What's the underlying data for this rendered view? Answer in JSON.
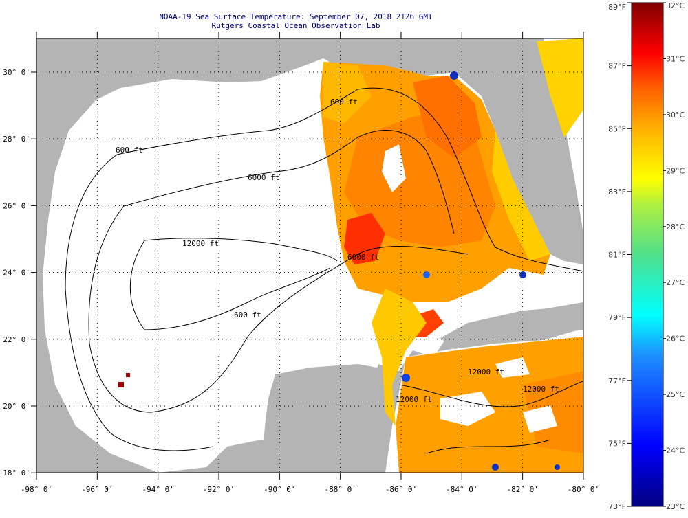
{
  "header": {
    "title": "NOAA-19 Sea Surface Temperature:  September 07, 2018 2126 GMT",
    "subtitle": "Rutgers Coastal Ocean Observation Lab"
  },
  "map": {
    "lat_labels": [
      "30° 0'",
      "28° 0'",
      "26° 0'",
      "24° 0'",
      "22° 0'",
      "20° 0'",
      "18° 0'"
    ],
    "lon_labels": [
      "-98° 0'",
      "-96° 0'",
      "-94° 0'",
      "-92° 0'",
      "-90° 0'",
      "-88° 0'",
      "-86° 0'",
      "-84° 0'",
      "-82° 0'",
      "-80° 0'"
    ],
    "contour_labels": [
      "600 ft",
      "6000 ft",
      "12000 ft",
      "600 ft",
      "6000 ft",
      "12000 ft",
      "600 ft",
      "12000 ft",
      "12000 ft"
    ],
    "colors": {
      "land": "#b4b4b4",
      "ocean": "#ffffff",
      "grid": "#000000"
    }
  },
  "colorbar": {
    "fahrenheit_labels": [
      "89°F",
      "87°F",
      "85°F",
      "83°F",
      "81°F",
      "79°F",
      "77°F",
      "75°F",
      "73°F"
    ],
    "celsius_labels": [
      "32°C",
      "31°C",
      "30°C",
      "29°C",
      "28°C",
      "27°C",
      "26°C",
      "25°C",
      "24°C",
      "23°C"
    ],
    "range_c": [
      23,
      32
    ],
    "range_f": [
      73,
      89
    ]
  }
}
